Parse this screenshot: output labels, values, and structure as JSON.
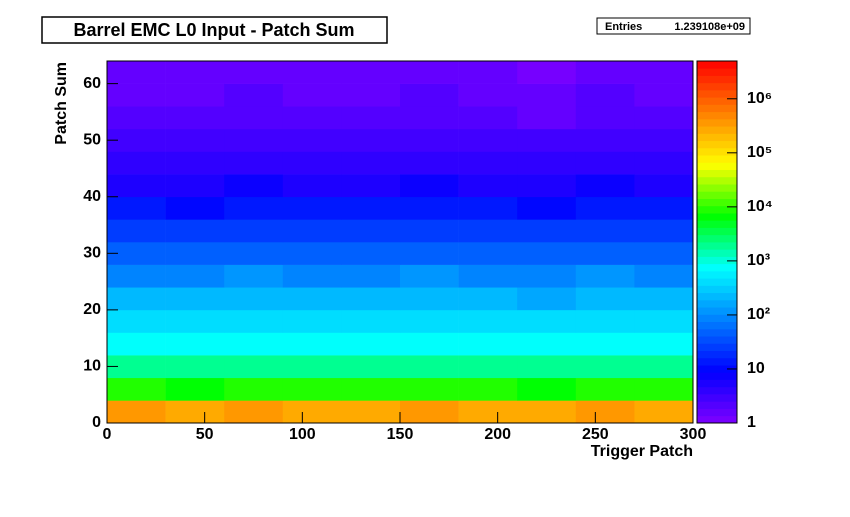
{
  "chart_data": {
    "type": "heatmap",
    "title": "Barrel EMC L0 Input - Patch Sum",
    "stats": {
      "label": "Entries",
      "value": "1.239108e+09"
    },
    "x_label": "Trigger Patch",
    "y_label": "Patch Sum",
    "xlim": [
      0,
      300
    ],
    "ylim": [
      0,
      64
    ],
    "xticks": [
      0,
      50,
      100,
      150,
      200,
      250,
      300
    ],
    "yticks": [
      0,
      10,
      20,
      30,
      40,
      50,
      60
    ],
    "zlim": [
      1,
      5000000
    ],
    "log_z": true,
    "zticks": [
      1,
      10,
      {
        "value": 100,
        "label": "10²"
      },
      {
        "value": 1000,
        "label": "10³"
      },
      {
        "value": 10000,
        "label": "10⁴"
      },
      {
        "value": 100000,
        "label": "10⁵"
      },
      {
        "value": 1000000,
        "label": "10⁶"
      }
    ],
    "xbins": [
      0,
      30,
      60,
      90,
      120,
      150,
      180,
      210,
      240,
      270,
      300
    ],
    "ybins": [
      0,
      4,
      8,
      12,
      16,
      20,
      24,
      28,
      32,
      36,
      40,
      44,
      48,
      52,
      56,
      60,
      64
    ],
    "z": [
      [
        320000,
        290000,
        330000,
        310000,
        300000,
        340000,
        300000,
        280000,
        320000,
        310000
      ],
      [
        8000,
        7500,
        8500,
        8200,
        7800,
        8600,
        8000,
        7400,
        8300,
        7900
      ],
      [
        2000,
        1900,
        2200,
        2100,
        1950,
        2150,
        2000,
        1850,
        2100,
        1950
      ],
      [
        800,
        760,
        850,
        820,
        780,
        860,
        810,
        750,
        830,
        790
      ],
      [
        400,
        380,
        430,
        410,
        390,
        420,
        400,
        370,
        420,
        390
      ],
      [
        200,
        190,
        215,
        205,
        195,
        210,
        200,
        185,
        210,
        195
      ],
      [
        100,
        95,
        110,
        102,
        97,
        105,
        100,
        92,
        106,
        98
      ],
      [
        50,
        47,
        55,
        51,
        48,
        53,
        50,
        46,
        53,
        49
      ],
      [
        25,
        23,
        27,
        26,
        24,
        26,
        25,
        23,
        27,
        24
      ],
      [
        12,
        11,
        13,
        12,
        12,
        13,
        12,
        11,
        13,
        12
      ],
      [
        6,
        5.5,
        6.5,
        6,
        6,
        6.5,
        6,
        5.5,
        6.5,
        6
      ],
      [
        4,
        3.8,
        4.3,
        4,
        3.9,
        4.2,
        4,
        3.7,
        4.2,
        3.9
      ],
      [
        3,
        2.8,
        3.2,
        3,
        2.9,
        3.1,
        3,
        2.7,
        3.1,
        2.9
      ],
      [
        2,
        1.9,
        2.2,
        2,
        1.9,
        2.1,
        2,
        1.8,
        2.1,
        1.9
      ],
      [
        1.8,
        1.7,
        1.9,
        1.8,
        1.7,
        1.9,
        1.8,
        1.6,
        1.9,
        1.7
      ],
      [
        1.5,
        1.4,
        1.6,
        1.5,
        1.4,
        1.6,
        1.5,
        1.3,
        1.6,
        1.4
      ]
    ]
  }
}
